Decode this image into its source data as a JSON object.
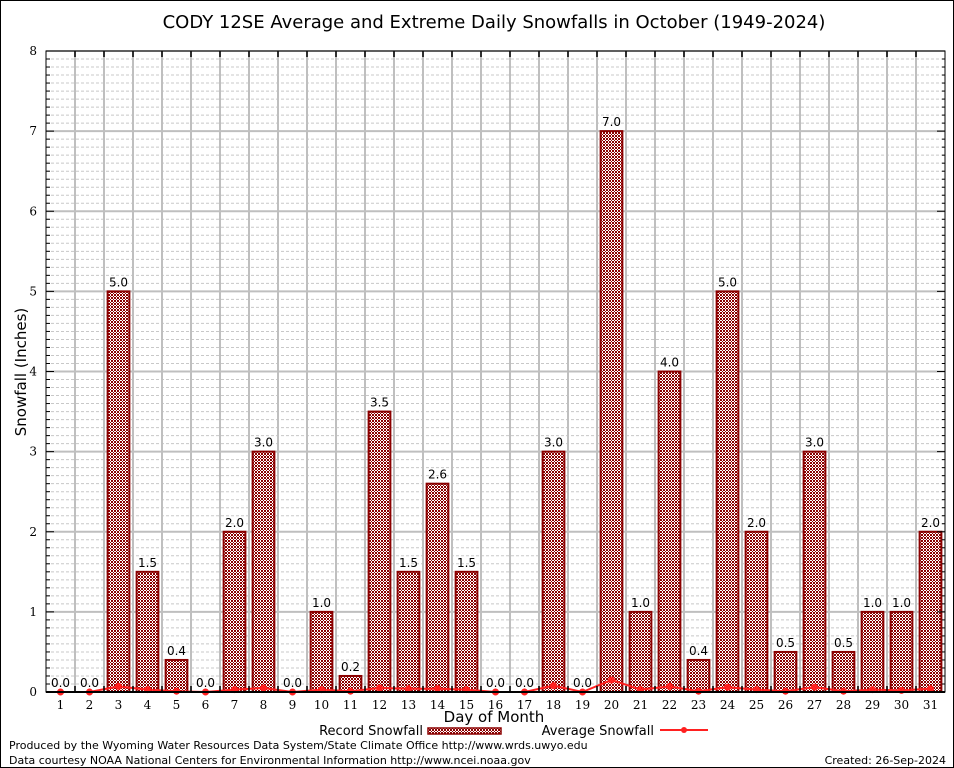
{
  "chart_data": {
    "type": "bar",
    "title": "CODY 12SE Average and Extreme Daily Snowfalls in October (1949-2024)",
    "xlabel": "Day of Month",
    "ylabel": "Snowfall (Inches)",
    "ylim": [
      0,
      8
    ],
    "yticks": [
      "0",
      "1",
      "2",
      "3",
      "4",
      "5",
      "6",
      "7",
      "8"
    ],
    "grid": true,
    "categories": [
      "1",
      "2",
      "3",
      "4",
      "5",
      "6",
      "7",
      "8",
      "9",
      "10",
      "11",
      "12",
      "13",
      "14",
      "15",
      "16",
      "17",
      "18",
      "19",
      "20",
      "21",
      "22",
      "23",
      "24",
      "25",
      "26",
      "27",
      "28",
      "29",
      "30",
      "31"
    ],
    "series": [
      {
        "name": "Record Snowfall",
        "kind": "bar",
        "color": "#8b0000",
        "values": [
          0.0,
          0.0,
          5.0,
          1.5,
          0.4,
          0.0,
          2.0,
          3.0,
          0.0,
          1.0,
          0.2,
          3.5,
          1.5,
          2.6,
          1.5,
          0.0,
          0.0,
          3.0,
          0.0,
          7.0,
          1.0,
          4.0,
          0.4,
          5.0,
          2.0,
          0.5,
          3.0,
          0.5,
          1.0,
          1.0,
          2.0
        ],
        "labels": [
          "0.0",
          "0.0",
          "5.0",
          "1.5",
          "0.4",
          "0.0",
          "2.0",
          "3.0",
          "0.0",
          "1.0",
          "0.2",
          "3.5",
          "1.5",
          "2.6",
          "1.5",
          "0.0",
          "0.0",
          "3.0",
          "0.0",
          "7.0",
          "1.0",
          "4.0",
          "0.4",
          "5.0",
          "2.0",
          "0.5",
          "3.0",
          "0.5",
          "1.0",
          "1.0",
          "2.0"
        ]
      },
      {
        "name": "Average Snowfall",
        "kind": "line",
        "color": "#ff2020",
        "values": [
          0.0,
          0.0,
          0.07,
          0.03,
          0.01,
          0.0,
          0.03,
          0.05,
          0.0,
          0.03,
          0.01,
          0.05,
          0.04,
          0.04,
          0.03,
          0.0,
          0.0,
          0.08,
          0.0,
          0.15,
          0.03,
          0.07,
          0.01,
          0.06,
          0.03,
          0.01,
          0.06,
          0.01,
          0.03,
          0.02,
          0.04
        ]
      }
    ],
    "legend_position": "bottom-center"
  },
  "footer": {
    "line1": "Produced by the Wyoming Water Resources Data System/State Climate Office http://www.wrds.uwyo.edu",
    "line2": "Data courtesy NOAA National Centers for Environmental Information http://www.ncei.noaa.gov",
    "created": "Created: 26-Sep-2024"
  }
}
